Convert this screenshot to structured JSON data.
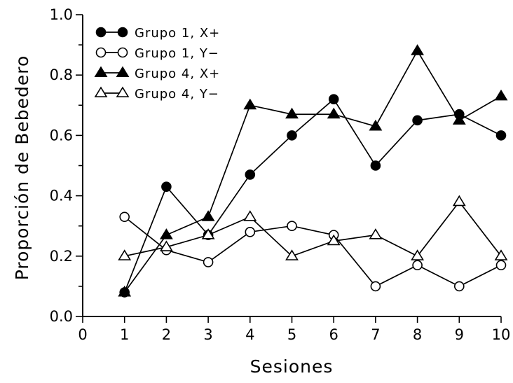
{
  "chart_data": {
    "type": "line",
    "xlabel": "Sesiones",
    "ylabel": "Proporción de Bebedero",
    "xlim": [
      0,
      10
    ],
    "ylim": [
      0.0,
      1.0
    ],
    "x_ticks": [
      "0",
      "1",
      "2",
      "3",
      "4",
      "5",
      "6",
      "7",
      "8",
      "9",
      "10"
    ],
    "y_ticks": [
      "0.0",
      "0.2",
      "0.4",
      "0.6",
      "0.8",
      "1.0"
    ],
    "grid": false,
    "legend_position": "top-left",
    "x": [
      1,
      2,
      3,
      4,
      5,
      6,
      7,
      8,
      9,
      10
    ],
    "series": [
      {
        "name": "Grupo 1, X+",
        "marker": "filled-circle",
        "values": [
          0.08,
          0.43,
          0.27,
          0.47,
          0.6,
          0.72,
          0.5,
          0.65,
          0.67,
          0.6
        ]
      },
      {
        "name": "Grupo 1, Y−",
        "marker": "open-circle",
        "values": [
          0.33,
          0.22,
          0.18,
          0.28,
          0.3,
          0.27,
          0.1,
          0.17,
          0.1,
          0.17
        ]
      },
      {
        "name": "Grupo 4, X+",
        "marker": "filled-triangle",
        "values": [
          0.08,
          0.27,
          0.33,
          0.7,
          0.67,
          0.67,
          0.63,
          0.88,
          0.65,
          0.73
        ]
      },
      {
        "name": "Grupo 4, Y−",
        "marker": "open-triangle",
        "values": [
          0.2,
          0.23,
          0.27,
          0.33,
          0.2,
          0.25,
          0.27,
          0.2,
          0.38,
          0.2
        ]
      }
    ]
  }
}
